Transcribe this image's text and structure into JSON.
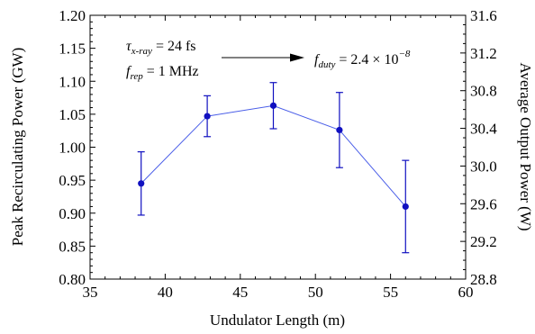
{
  "chart_data": {
    "type": "scatter",
    "x": [
      38.4,
      42.8,
      47.2,
      51.6,
      56.0
    ],
    "y": [
      0.945,
      1.047,
      1.063,
      1.026,
      0.91
    ],
    "yerr_low": [
      0.048,
      0.031,
      0.035,
      0.057,
      0.07
    ],
    "yerr_high": [
      0.048,
      0.031,
      0.035,
      0.057,
      0.07
    ],
    "connected": true,
    "color": "#1010c0",
    "xlabel": "Undulator Length (m)",
    "ylabel": "Peak Recirculating Power (GW)",
    "y2label": "Average Output Power (W)",
    "xlim": [
      35,
      60
    ],
    "ylim": [
      0.8,
      1.2
    ],
    "y2lim": [
      28.8,
      31.6
    ],
    "xticks": [
      "35",
      "40",
      "45",
      "50",
      "55",
      "60"
    ],
    "yticks": [
      "0.80",
      "0.85",
      "0.90",
      "0.95",
      "1.00",
      "1.05",
      "1.10",
      "1.15",
      "1.20"
    ],
    "y2ticks": [
      "28.8",
      "29.2",
      "29.6",
      "30.0",
      "30.4",
      "30.8",
      "31.2",
      "31.6"
    ],
    "grid": false,
    "annotations": {
      "tau": {
        "symbol": "τ",
        "sub": "x-ray",
        "value": " = 24 fs"
      },
      "frep": {
        "symbol": "f",
        "sub": "rep",
        "value": " = 1 MHz"
      },
      "fduty": {
        "symbol": "f",
        "sub": "duty",
        "value": " = 2.4 × 10",
        "exp": "−8"
      }
    }
  }
}
